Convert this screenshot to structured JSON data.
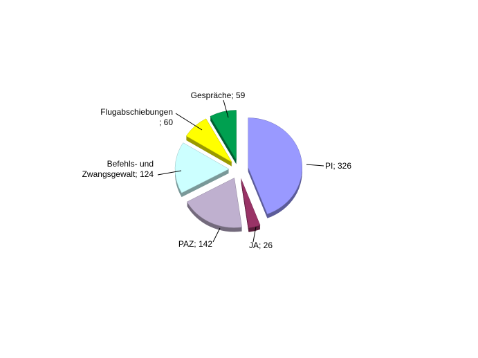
{
  "chart_data": {
    "type": "pie",
    "values": [
      326,
      26,
      142,
      124,
      60,
      59
    ],
    "value_labels": [
      [
        "PI; 326"
      ],
      [
        "JA; 26"
      ],
      [
        "PAZ; 142"
      ],
      [
        "Befehls-  und",
        "Zwangsgewalt;  124"
      ],
      [
        "Flugabschiebungen",
        "; 60"
      ],
      [
        "Gespräche;  59"
      ]
    ],
    "colors": [
      "#9999ff",
      "#993366",
      "#bfb0cf",
      "#ccffff",
      "#ffff00",
      "#00a050"
    ]
  }
}
